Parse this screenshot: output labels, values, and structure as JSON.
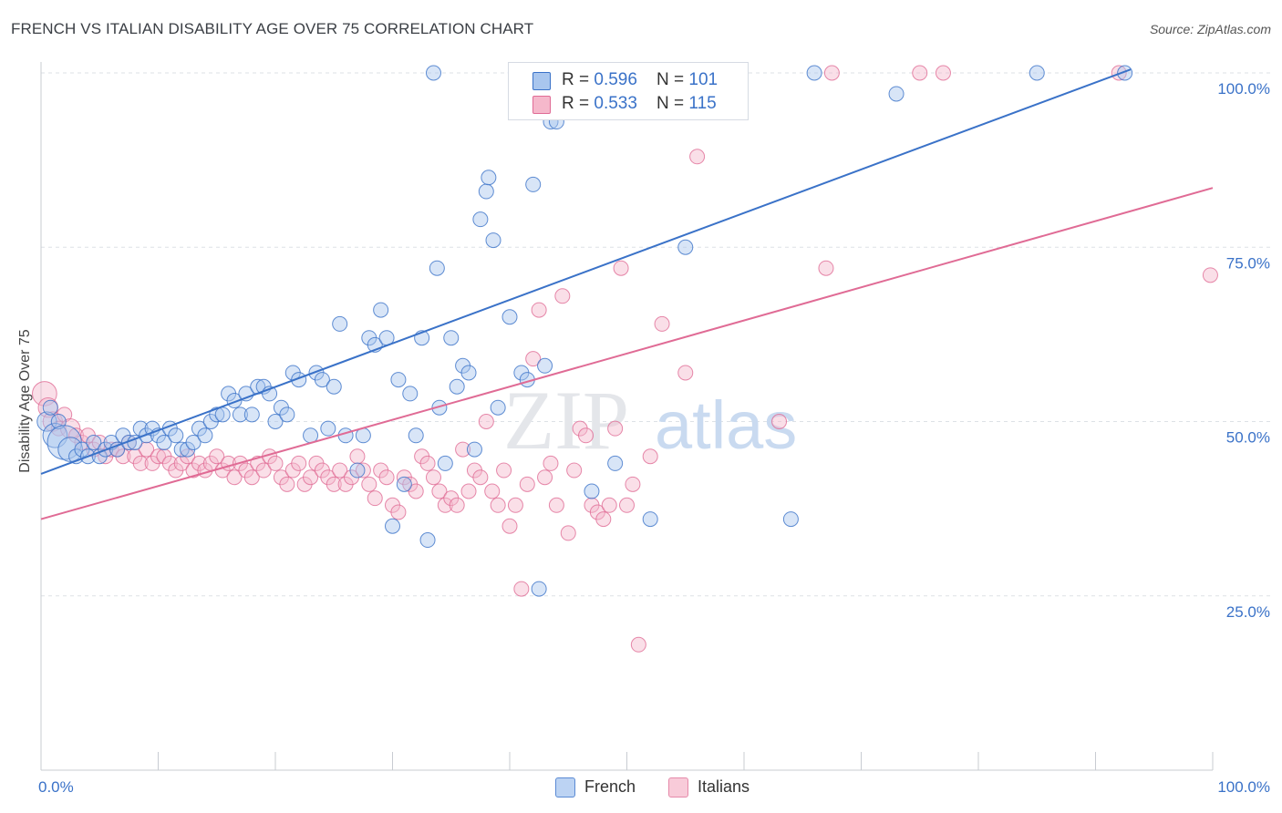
{
  "title": "FRENCH VS ITALIAN DISABILITY AGE OVER 75 CORRELATION CHART",
  "source": "Source: ZipAtlas.com",
  "watermark": {
    "zip": "ZIP",
    "atlas": "atlas"
  },
  "legend": {
    "french": {
      "r_label": "R = ",
      "r_value": "0.596",
      "n_label": "N = ",
      "n_value": "101"
    },
    "italians": {
      "r_label": "R = ",
      "r_value": "0.533",
      "n_label": "N = ",
      "n_value": "115"
    }
  },
  "bottom_legend": {
    "french": "French",
    "italians": "Italians"
  },
  "chart_data": {
    "type": "scatter",
    "title": "FRENCH VS ITALIAN DISABILITY AGE OVER 75 CORRELATION CHART",
    "xlabel": "",
    "ylabel": "Disability Age Over 75",
    "xlim": [
      0,
      100
    ],
    "ylim": [
      0,
      100
    ],
    "x_tick_labels": [
      "0.0%",
      "100.0%"
    ],
    "y_tick_labels": [
      "25.0%",
      "50.0%",
      "75.0%",
      "100.0%"
    ],
    "y_ticks": [
      25,
      50,
      75,
      100
    ],
    "colors": {
      "french": "#3a72c8",
      "french_fill": "#a9c6ee",
      "italians": "#e06b95",
      "italians_fill": "#f5b8cb"
    },
    "series": [
      {
        "name": "French",
        "r": 0.596,
        "n": 101,
        "trend": {
          "x": [
            0,
            93
          ],
          "y": [
            42.5,
            100.5
          ]
        },
        "points": [
          [
            0.5,
            50,
            4
          ],
          [
            0.8,
            52,
            3
          ],
          [
            1.2,
            48,
            5
          ],
          [
            1.5,
            50,
            3
          ],
          [
            2,
            47,
            7
          ],
          [
            2.5,
            46,
            5
          ],
          [
            3,
            45,
            3
          ],
          [
            3.5,
            46,
            3
          ],
          [
            4,
            45,
            3
          ],
          [
            4.5,
            47,
            3
          ],
          [
            5,
            45,
            3
          ],
          [
            5.5,
            46,
            3
          ],
          [
            6,
            47,
            3
          ],
          [
            6.5,
            46,
            3
          ],
          [
            7,
            48,
            3
          ],
          [
            7.5,
            47,
            3
          ],
          [
            8,
            47,
            3
          ],
          [
            8.5,
            49,
            3
          ],
          [
            9,
            48,
            3
          ],
          [
            9.5,
            49,
            3
          ],
          [
            10,
            48,
            3
          ],
          [
            10.5,
            47,
            3
          ],
          [
            11,
            49,
            3
          ],
          [
            11.5,
            48,
            3
          ],
          [
            12,
            46,
            3
          ],
          [
            12.5,
            46,
            3
          ],
          [
            13,
            47,
            3
          ],
          [
            13.5,
            49,
            3
          ],
          [
            14,
            48,
            3
          ],
          [
            14.5,
            50,
            3
          ],
          [
            15,
            51,
            3
          ],
          [
            15.5,
            51,
            3
          ],
          [
            16,
            54,
            3
          ],
          [
            16.5,
            53,
            3
          ],
          [
            17,
            51,
            3
          ],
          [
            17.5,
            54,
            3
          ],
          [
            18,
            51,
            3
          ],
          [
            18.5,
            55,
            3
          ],
          [
            19,
            55,
            3
          ],
          [
            19.5,
            54,
            3
          ],
          [
            20,
            50,
            3
          ],
          [
            20.5,
            52,
            3
          ],
          [
            21,
            51,
            3
          ],
          [
            21.5,
            57,
            3
          ],
          [
            22,
            56,
            3
          ],
          [
            23,
            48,
            3
          ],
          [
            23.5,
            57,
            3
          ],
          [
            24,
            56,
            3
          ],
          [
            24.5,
            49,
            3
          ],
          [
            25,
            55,
            3
          ],
          [
            25.5,
            64,
            3
          ],
          [
            26,
            48,
            3
          ],
          [
            27,
            43,
            3
          ],
          [
            27.5,
            48,
            3
          ],
          [
            28,
            62,
            3
          ],
          [
            28.5,
            61,
            3
          ],
          [
            29,
            66,
            3
          ],
          [
            29.5,
            62,
            3
          ],
          [
            30,
            35,
            3
          ],
          [
            30.5,
            56,
            3
          ],
          [
            31,
            41,
            3
          ],
          [
            31.5,
            54,
            3
          ],
          [
            32,
            48,
            3
          ],
          [
            32.5,
            62,
            3
          ],
          [
            33,
            33,
            3
          ],
          [
            33.5,
            100,
            3
          ],
          [
            33.8,
            72,
            3
          ],
          [
            34,
            52,
            3
          ],
          [
            34.5,
            44,
            3
          ],
          [
            35,
            62,
            3
          ],
          [
            35.5,
            55,
            3
          ],
          [
            36,
            58,
            3
          ],
          [
            36.5,
            57,
            3
          ],
          [
            37,
            46,
            3
          ],
          [
            37.5,
            79,
            3
          ],
          [
            38,
            83,
            3
          ],
          [
            38.2,
            85,
            3
          ],
          [
            38.6,
            76,
            3
          ],
          [
            39,
            52,
            3
          ],
          [
            40,
            65,
            3
          ],
          [
            40.5,
            100,
            3
          ],
          [
            41,
            57,
            3
          ],
          [
            41.5,
            56,
            3
          ],
          [
            42,
            84,
            3
          ],
          [
            42.5,
            26,
            3
          ],
          [
            43,
            58,
            3
          ],
          [
            43.5,
            93,
            3
          ],
          [
            44,
            93,
            3
          ],
          [
            45,
            100,
            3
          ],
          [
            47,
            40,
            3
          ],
          [
            49,
            44,
            3
          ],
          [
            52,
            36,
            3
          ],
          [
            55,
            75,
            3
          ],
          [
            57,
            100,
            3
          ],
          [
            64,
            36,
            3
          ],
          [
            66,
            100,
            3
          ],
          [
            73,
            97,
            3
          ],
          [
            85,
            100,
            3
          ],
          [
            92.5,
            100,
            3
          ]
        ]
      },
      {
        "name": "Italians",
        "r": 0.533,
        "n": 115,
        "trend": {
          "x": [
            0,
            100
          ],
          "y": [
            36,
            83.5
          ]
        },
        "points": [
          [
            0.3,
            54,
            5
          ],
          [
            0.6,
            52,
            4
          ],
          [
            1,
            50,
            4
          ],
          [
            1.5,
            49,
            3
          ],
          [
            2,
            51,
            3
          ],
          [
            2.5,
            49,
            4
          ],
          [
            3,
            48,
            3
          ],
          [
            3.5,
            47,
            3
          ],
          [
            4,
            48,
            3
          ],
          [
            4.5,
            46,
            3
          ],
          [
            5,
            47,
            3
          ],
          [
            5.5,
            45,
            3
          ],
          [
            6,
            46,
            3
          ],
          [
            6.5,
            46,
            3
          ],
          [
            7,
            45,
            3
          ],
          [
            7.5,
            47,
            3
          ],
          [
            8,
            45,
            3
          ],
          [
            8.5,
            44,
            3
          ],
          [
            9,
            46,
            3
          ],
          [
            9.5,
            44,
            3
          ],
          [
            10,
            45,
            3
          ],
          [
            10.5,
            45,
            3
          ],
          [
            11,
            44,
            3
          ],
          [
            11.5,
            43,
            3
          ],
          [
            12,
            44,
            3
          ],
          [
            12.5,
            45,
            3
          ],
          [
            13,
            43,
            3
          ],
          [
            13.5,
            44,
            3
          ],
          [
            14,
            43,
            3
          ],
          [
            14.5,
            44,
            3
          ],
          [
            15,
            45,
            3
          ],
          [
            15.5,
            43,
            3
          ],
          [
            16,
            44,
            3
          ],
          [
            16.5,
            42,
            3
          ],
          [
            17,
            44,
            3
          ],
          [
            17.5,
            43,
            3
          ],
          [
            18,
            42,
            3
          ],
          [
            18.5,
            44,
            3
          ],
          [
            19,
            43,
            3
          ],
          [
            19.5,
            45,
            3
          ],
          [
            20,
            44,
            3
          ],
          [
            20.5,
            42,
            3
          ],
          [
            21,
            41,
            3
          ],
          [
            21.5,
            43,
            3
          ],
          [
            22,
            44,
            3
          ],
          [
            22.5,
            41,
            3
          ],
          [
            23,
            42,
            3
          ],
          [
            23.5,
            44,
            3
          ],
          [
            24,
            43,
            3
          ],
          [
            24.5,
            42,
            3
          ],
          [
            25,
            41,
            3
          ],
          [
            25.5,
            43,
            3
          ],
          [
            26,
            41,
            3
          ],
          [
            26.5,
            42,
            3
          ],
          [
            27,
            45,
            3
          ],
          [
            27.5,
            43,
            3
          ],
          [
            28,
            41,
            3
          ],
          [
            28.5,
            39,
            3
          ],
          [
            29,
            43,
            3
          ],
          [
            29.5,
            42,
            3
          ],
          [
            30,
            38,
            3
          ],
          [
            30.5,
            37,
            3
          ],
          [
            31,
            42,
            3
          ],
          [
            31.5,
            41,
            3
          ],
          [
            32,
            40,
            3
          ],
          [
            32.5,
            45,
            3
          ],
          [
            33,
            44,
            3
          ],
          [
            33.5,
            42,
            3
          ],
          [
            34,
            40,
            3
          ],
          [
            34.5,
            38,
            3
          ],
          [
            35,
            39,
            3
          ],
          [
            35.5,
            38,
            3
          ],
          [
            36,
            46,
            3
          ],
          [
            36.5,
            40,
            3
          ],
          [
            37,
            43,
            3
          ],
          [
            37.5,
            42,
            3
          ],
          [
            38,
            50,
            3
          ],
          [
            38.5,
            40,
            3
          ],
          [
            39,
            38,
            3
          ],
          [
            39.5,
            43,
            3
          ],
          [
            40,
            35,
            3
          ],
          [
            40.5,
            38,
            3
          ],
          [
            41,
            26,
            3
          ],
          [
            41.5,
            41,
            3
          ],
          [
            42,
            59,
            3
          ],
          [
            42.5,
            66,
            3
          ],
          [
            43,
            42,
            3
          ],
          [
            43.5,
            44,
            3
          ],
          [
            44,
            38,
            3
          ],
          [
            44.5,
            68,
            3
          ],
          [
            45,
            34,
            3
          ],
          [
            45.5,
            43,
            3
          ],
          [
            46,
            49,
            3
          ],
          [
            46.5,
            48,
            3
          ],
          [
            47,
            38,
            3
          ],
          [
            47.5,
            37,
            3
          ],
          [
            48,
            36,
            3
          ],
          [
            48.5,
            38,
            3
          ],
          [
            49,
            49,
            3
          ],
          [
            49.5,
            72,
            3
          ],
          [
            50,
            38,
            3
          ],
          [
            50.5,
            41,
            3
          ],
          [
            51,
            18,
            3
          ],
          [
            52,
            45,
            3
          ],
          [
            53,
            64,
            3
          ],
          [
            54,
            100,
            3
          ],
          [
            55,
            57,
            3
          ],
          [
            56,
            88,
            3
          ],
          [
            56.5,
            100,
            3
          ],
          [
            63,
            50,
            3
          ],
          [
            67,
            72,
            3
          ],
          [
            67.5,
            100,
            3
          ],
          [
            75,
            100,
            3
          ],
          [
            77,
            100,
            3
          ],
          [
            92,
            100,
            3
          ],
          [
            99.8,
            71,
            3
          ]
        ]
      }
    ]
  }
}
